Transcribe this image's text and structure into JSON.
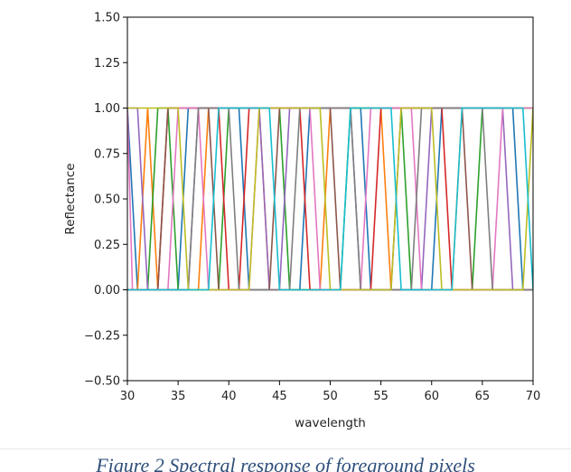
{
  "figure": {
    "caption": "Figure 2 Spectral response of foreground pixels"
  },
  "chart_data": {
    "type": "line",
    "title": "",
    "xlabel": "wavelength",
    "ylabel": "Reflectance",
    "xlim": [
      30,
      70
    ],
    "ylim": [
      -0.5,
      1.5
    ],
    "xticks": [
      30,
      35,
      40,
      45,
      50,
      55,
      60,
      65,
      70
    ],
    "yticks": [
      -0.5,
      -0.25,
      0.0,
      0.25,
      0.5,
      0.75,
      1.0,
      1.25,
      1.5
    ],
    "xtick_labels": [
      "30",
      "35",
      "40",
      "45",
      "50",
      "55",
      "60",
      "65",
      "70"
    ],
    "ytick_labels": [
      "−0.50",
      "−0.25",
      "0.00",
      "0.25",
      "0.50",
      "0.75",
      "1.00",
      "1.25",
      "1.50"
    ],
    "grid": false,
    "legend": false,
    "colors": [
      "#1f77b4",
      "#ff7f0e",
      "#2ca02c",
      "#d62728",
      "#9467bd",
      "#8c564b",
      "#e377c2",
      "#7f7f7f",
      "#bcbd22",
      "#17becf"
    ],
    "series": [
      {
        "color": "#1f77b4",
        "x": [
          30,
          31,
          35,
          36,
          41,
          42,
          47,
          48,
          53,
          54,
          60,
          61,
          68,
          69,
          70
        ],
        "y": [
          1,
          0,
          0,
          1,
          1,
          0,
          0,
          1,
          1,
          0,
          0,
          1,
          1,
          0,
          0
        ]
      },
      {
        "color": "#ff7f0e",
        "x": [
          30,
          31,
          32,
          33,
          37,
          38,
          43,
          44,
          49,
          50,
          55,
          56,
          62,
          63,
          70
        ],
        "y": [
          0,
          0,
          1,
          0,
          0,
          1,
          1,
          0,
          0,
          1,
          1,
          0,
          0,
          1,
          1
        ]
      },
      {
        "color": "#2ca02c",
        "x": [
          30,
          32,
          33,
          34,
          35,
          39,
          40,
          45,
          46,
          51,
          52,
          57,
          58,
          64,
          65,
          70
        ],
        "y": [
          0,
          0,
          1,
          1,
          0,
          0,
          1,
          1,
          0,
          0,
          1,
          1,
          0,
          0,
          1,
          1
        ]
      },
      {
        "color": "#d62728",
        "x": [
          30,
          33,
          34,
          39,
          40,
          41,
          42,
          47,
          48,
          54,
          55,
          61,
          62,
          70
        ],
        "y": [
          0,
          0,
          1,
          1,
          0,
          0,
          1,
          1,
          0,
          0,
          1,
          1,
          0,
          0
        ]
      },
      {
        "color": "#9467bd",
        "x": [
          30,
          31,
          32,
          36,
          37,
          43,
          44,
          45,
          46,
          52,
          53,
          59,
          60,
          67,
          68,
          70
        ],
        "y": [
          1,
          1,
          0,
          0,
          1,
          1,
          0,
          0,
          1,
          1,
          0,
          0,
          1,
          1,
          0,
          0
        ]
      },
      {
        "color": "#8c564b",
        "x": [
          30,
          33,
          34,
          38,
          39,
          44,
          45,
          50,
          51,
          56,
          57,
          63,
          64,
          70
        ],
        "y": [
          0,
          0,
          1,
          1,
          0,
          0,
          1,
          1,
          0,
          0,
          1,
          1,
          0,
          0
        ]
      },
      {
        "color": "#e377c2",
        "x": [
          30,
          30.5,
          34,
          35,
          37,
          38,
          42,
          43,
          48,
          49,
          53,
          54,
          58,
          59,
          66,
          67,
          70
        ],
        "y": [
          1,
          0,
          0,
          1,
          1,
          0,
          0,
          1,
          1,
          0,
          0,
          1,
          1,
          0,
          0,
          1,
          1
        ]
      },
      {
        "color": "#7f7f7f",
        "x": [
          30,
          36,
          37,
          40,
          41,
          46,
          47,
          52,
          53,
          58,
          59,
          65,
          66,
          70
        ],
        "y": [
          0,
          0,
          1,
          1,
          0,
          0,
          1,
          1,
          0,
          0,
          1,
          1,
          0,
          0
        ]
      },
      {
        "color": "#bcbd22",
        "x": [
          30,
          35,
          36,
          42,
          43,
          49,
          50,
          56,
          57,
          60,
          61,
          69,
          70
        ],
        "y": [
          1,
          1,
          0,
          0,
          1,
          1,
          0,
          0,
          1,
          1,
          0,
          0,
          1
        ]
      },
      {
        "color": "#17becf",
        "x": [
          30,
          38,
          39,
          44,
          45,
          51,
          52,
          56,
          57,
          62,
          63,
          69,
          70
        ],
        "y": [
          0,
          0,
          1,
          1,
          0,
          0,
          1,
          1,
          0,
          0,
          1,
          1,
          0
        ]
      }
    ]
  }
}
